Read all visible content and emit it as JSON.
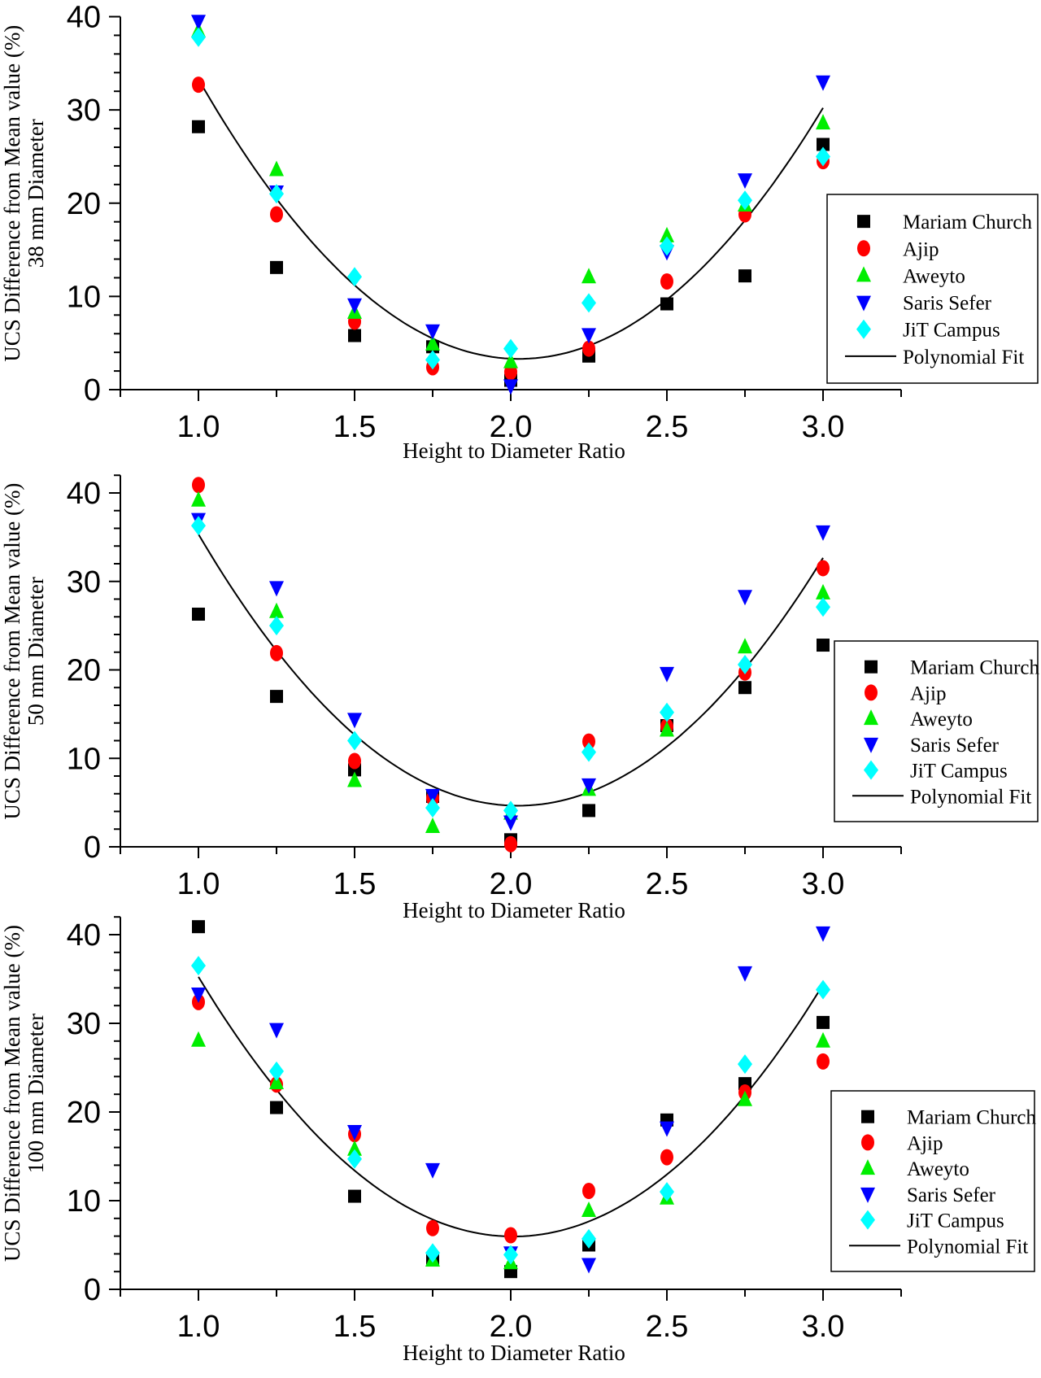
{
  "chart_data": [
    {
      "type": "scatter",
      "ylabel": [
        "UCS Difference from Mean value (%)",
        "38 mm Diameter"
      ],
      "xlabel": "Height to Diameter Ratio",
      "xlim": [
        0.75,
        3.25
      ],
      "ylim": [
        0,
        40
      ],
      "xticks": [
        "1.0",
        "1.5",
        "2.0",
        "2.5",
        "3.0"
      ],
      "yticks": [
        "0",
        "10",
        "20",
        "30",
        "40"
      ],
      "legend": "right",
      "x": [
        1.0,
        1.25,
        1.5,
        1.75,
        2.0,
        2.25,
        2.5,
        2.75,
        3.0
      ],
      "series": [
        {
          "name": "Mariam Church",
          "marker": "square",
          "color": "#000000",
          "values": [
            28.2,
            13.1,
            5.8,
            4.6,
            1.0,
            3.6,
            9.2,
            12.2,
            26.3
          ]
        },
        {
          "name": "Ajip",
          "marker": "circle",
          "color": "#ff0000",
          "values": [
            32.7,
            18.8,
            7.3,
            2.4,
            1.9,
            4.4,
            11.6,
            18.8,
            24.5
          ]
        },
        {
          "name": "Aweyto",
          "marker": "triangle-up",
          "color": "#00ee00",
          "values": [
            38.5,
            23.6,
            8.3,
            4.9,
            3.0,
            12.1,
            16.5,
            19.8,
            28.6
          ]
        },
        {
          "name": "Saris Sefer",
          "marker": "triangle-down",
          "color": "#0000ff",
          "values": [
            39.5,
            21.2,
            9.1,
            6.3,
            0.4,
            5.9,
            14.8,
            22.5,
            33.0
          ]
        },
        {
          "name": "JiT Campus",
          "marker": "diamond",
          "color": "#00ffff",
          "values": [
            37.8,
            21.0,
            12.1,
            3.2,
            4.4,
            9.3,
            15.4,
            20.3,
            25.0
          ]
        }
      ],
      "fit": {
        "name": "Polynomial Fit",
        "color": "#000000",
        "coefficients": [
          120.16,
          -115.3,
          28.44
        ],
        "xrange": [
          1.0,
          3.0
        ]
      }
    },
    {
      "type": "scatter",
      "ylabel": [
        "UCS Difference from Mean value (%)",
        "50 mm Diameter"
      ],
      "xlabel": "Height to Diameter Ratio",
      "xlim": [
        0.75,
        3.25
      ],
      "ylim": [
        0,
        42
      ],
      "xticks": [
        "1.0",
        "1.5",
        "2.0",
        "2.5",
        "3.0"
      ],
      "yticks": [
        "0",
        "10",
        "20",
        "30",
        "40"
      ],
      "legend": "right",
      "x": [
        1.0,
        1.25,
        1.5,
        1.75,
        2.0,
        2.25,
        2.5,
        2.75,
        3.0
      ],
      "series": [
        {
          "name": "Mariam Church",
          "marker": "square",
          "color": "#000000",
          "values": [
            26.3,
            17.0,
            8.7,
            5.7,
            0.8,
            4.1,
            13.7,
            18.0,
            22.8
          ]
        },
        {
          "name": "Ajip",
          "marker": "circle",
          "color": "#ff0000",
          "values": [
            40.9,
            21.9,
            9.7,
            5.5,
            0.3,
            11.9,
            13.6,
            19.7,
            31.5
          ]
        },
        {
          "name": "Aweyto",
          "marker": "triangle-up",
          "color": "#00ee00",
          "values": [
            39.2,
            26.6,
            7.5,
            2.3,
            3.8,
            6.5,
            13.2,
            22.6,
            28.7
          ]
        },
        {
          "name": "Saris Sefer",
          "marker": "triangle-down",
          "color": "#0000ff",
          "values": [
            37.0,
            29.3,
            14.4,
            5.8,
            2.8,
            7.0,
            19.6,
            28.3,
            35.6
          ]
        },
        {
          "name": "JiT Campus",
          "marker": "diamond",
          "color": "#00ffff",
          "values": [
            36.3,
            25.0,
            12.0,
            4.4,
            4.1,
            10.7,
            15.2,
            20.6,
            27.1
          ]
        }
      ],
      "fit": {
        "name": "Polynomial Fit",
        "color": "#000000",
        "coefficients": [
          124.7,
          -118.7,
          29.34
        ],
        "xrange": [
          1.0,
          3.0
        ]
      }
    },
    {
      "type": "scatter",
      "ylabel": [
        "UCS Difference from Mean value (%)",
        "100 mm Diameter"
      ],
      "xlabel": "Height to Diameter Ratio",
      "xlim": [
        0.75,
        3.25
      ],
      "ylim": [
        0,
        42
      ],
      "xticks": [
        "1.0",
        "1.5",
        "2.0",
        "2.5",
        "3.0"
      ],
      "yticks": [
        "0",
        "10",
        "20",
        "30",
        "40"
      ],
      "legend": "right",
      "x": [
        1.0,
        1.25,
        1.5,
        1.75,
        2.0,
        2.25,
        2.5,
        2.75,
        3.0
      ],
      "series": [
        {
          "name": "Mariam Church",
          "marker": "square",
          "color": "#000000",
          "values": [
            40.9,
            20.5,
            10.5,
            3.3,
            2.0,
            5.0,
            19.1,
            23.2,
            30.1
          ]
        },
        {
          "name": "Ajip",
          "marker": "circle",
          "color": "#ff0000",
          "values": [
            32.4,
            23.1,
            17.5,
            6.9,
            6.1,
            11.1,
            14.9,
            22.2,
            25.7
          ]
        },
        {
          "name": "Aweyto",
          "marker": "triangle-up",
          "color": "#00ee00",
          "values": [
            28.1,
            23.3,
            15.8,
            3.3,
            3.0,
            8.9,
            10.3,
            21.4,
            28.0
          ]
        },
        {
          "name": "Saris Sefer",
          "marker": "triangle-down",
          "color": "#0000ff",
          "values": [
            33.3,
            29.3,
            17.8,
            13.5,
            4.1,
            2.8,
            18.2,
            35.7,
            40.2
          ]
        },
        {
          "name": "JiT Campus",
          "marker": "diamond",
          "color": "#00ffff",
          "values": [
            36.5,
            24.6,
            14.7,
            4.1,
            3.9,
            5.7,
            11.0,
            25.4,
            33.8
          ]
        }
      ],
      "fit": {
        "name": "Polynomial Fit",
        "color": "#000000",
        "coefficients": [
          122.2,
          -115.8,
          28.84
        ],
        "xrange": [
          1.0,
          3.0
        ]
      }
    }
  ]
}
